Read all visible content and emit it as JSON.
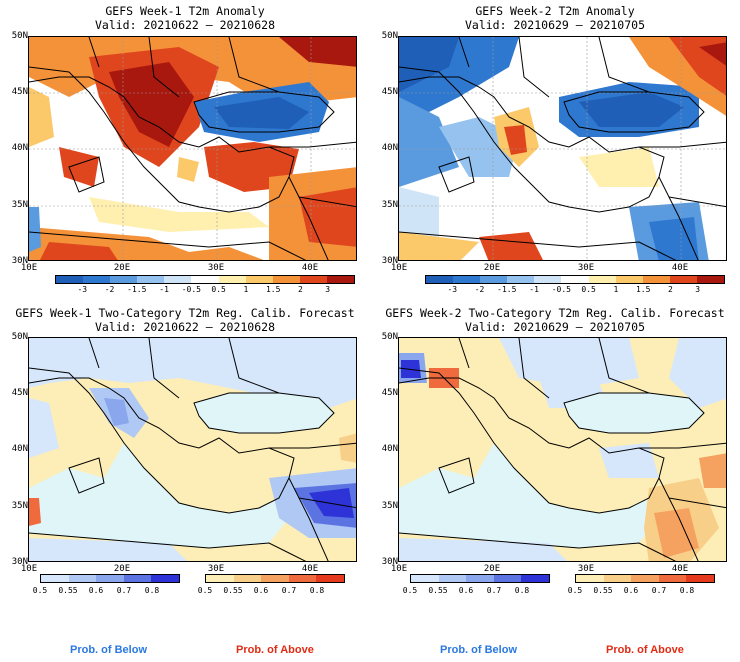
{
  "panels": [
    {
      "title": "GEFS Week-1 T2m Anomaly",
      "valid": "Valid: 20210622 – 20210628"
    },
    {
      "title": "GEFS Week-2 T2m Anomaly",
      "valid": "Valid: 20210629 – 20210705"
    },
    {
      "title": "GEFS Week-1 Two-Category T2m Reg. Calib. Forecast",
      "valid": "Valid: 20210622 – 20210628"
    },
    {
      "title": "GEFS Week-2 Two-Category T2m Reg. Calib. Forecast",
      "valid": "Valid: 20210629 – 20210705"
    }
  ],
  "axes": {
    "lat_labels": [
      "50N",
      "45N",
      "40N",
      "35N",
      "30N"
    ],
    "lon_labels": [
      "10E",
      "20E",
      "30E",
      "40E"
    ]
  },
  "anomaly_colorbar": {
    "labels": [
      "-3",
      "-2",
      "-1.5",
      "-1",
      "-0.5",
      "0.5",
      "1",
      "1.5",
      "2",
      "3"
    ],
    "colors": [
      "#1f5fb8",
      "#2f78d0",
      "#5a9be0",
      "#95c2ee",
      "#cfe4f7",
      "#ffffff",
      "#fff0b0",
      "#fbc86a",
      "#f4923a",
      "#e0461e",
      "#a8180e"
    ]
  },
  "prob_colorbars": {
    "below_labels": [
      "0.5",
      "0.55",
      "0.6",
      "0.7",
      "0.8"
    ],
    "below_colors": [
      "#d6e6fb",
      "#b0c8f4",
      "#8aa6ec",
      "#5b74e2",
      "#2e33d8"
    ],
    "above_labels": [
      "0.5",
      "0.55",
      "0.6",
      "0.7",
      "0.8"
    ],
    "above_colors": [
      "#fdeeb7",
      "#f8cf89",
      "#f5a261",
      "#ef6a3c",
      "#e63a1e"
    ]
  },
  "legend": {
    "below_left": "Prob. of Below",
    "above_left": "Prob. of Above",
    "below_right": "Prob. of Below",
    "above_right": "Prob. of Above",
    "below_color": "#2a78e0",
    "above_color": "#e02c14"
  }
}
